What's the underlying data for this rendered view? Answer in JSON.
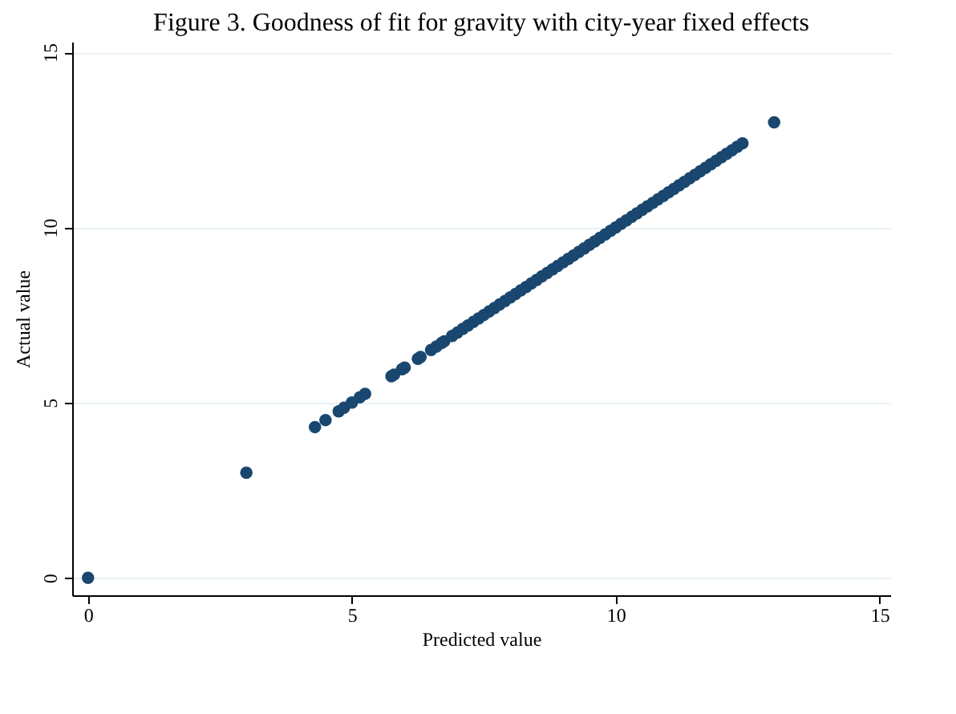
{
  "chart_data": {
    "type": "scatter",
    "title": "Figure 3. Goodness of fit for gravity with city-year fixed effects",
    "xlabel": "Predicted value",
    "ylabel": "Actual value",
    "x": [
      0,
      3,
      4.3,
      4.5,
      4.75,
      4.85,
      5.0,
      5.15,
      5.25,
      5.75,
      5.8,
      5.95,
      6.0,
      6.25,
      6.3,
      6.5,
      6.6,
      6.7,
      6.75,
      6.9,
      7.0,
      7.1,
      7.2,
      7.3,
      7.4,
      7.5,
      7.6,
      7.7,
      7.8,
      7.9,
      8.0,
      8.1,
      8.2,
      8.3,
      8.4,
      8.5,
      8.6,
      8.7,
      8.8,
      8.9,
      9.0,
      9.1,
      9.2,
      9.3,
      9.4,
      9.5,
      9.6,
      9.7,
      9.8,
      9.9,
      10.0,
      10.1,
      10.2,
      10.3,
      10.4,
      10.5,
      10.6,
      10.7,
      10.8,
      10.9,
      11.0,
      11.1,
      11.2,
      11.3,
      11.4,
      11.5,
      11.6,
      11.7,
      11.8,
      11.9,
      12.0,
      12.1,
      12.2,
      12.3,
      12.4,
      13.0
    ],
    "series": [
      {
        "color": "#1a476f",
        "values": [
          0,
          3,
          4.3,
          4.5,
          4.75,
          4.85,
          5.0,
          5.15,
          5.25,
          5.75,
          5.8,
          5.95,
          6.0,
          6.25,
          6.3,
          6.5,
          6.6,
          6.7,
          6.75,
          6.9,
          7.0,
          7.1,
          7.2,
          7.3,
          7.4,
          7.5,
          7.6,
          7.7,
          7.8,
          7.9,
          8.0,
          8.1,
          8.2,
          8.3,
          8.4,
          8.5,
          8.6,
          8.7,
          8.8,
          8.9,
          9.0,
          9.1,
          9.2,
          9.3,
          9.4,
          9.5,
          9.6,
          9.7,
          9.8,
          9.9,
          10.0,
          10.1,
          10.2,
          10.3,
          10.4,
          10.5,
          10.6,
          10.7,
          10.8,
          10.9,
          11.0,
          11.1,
          11.2,
          11.3,
          11.4,
          11.5,
          11.6,
          11.7,
          11.8,
          11.9,
          12.0,
          12.1,
          12.2,
          12.3,
          12.4,
          13.0
        ]
      }
    ],
    "xlim": [
      -0.3,
      15.2
    ],
    "ylim": [
      -0.5,
      15.3
    ],
    "xticks": [
      0,
      5,
      10,
      15
    ],
    "yticks": [
      0,
      5,
      10,
      15
    ],
    "grid": "y",
    "marker": "circle"
  }
}
